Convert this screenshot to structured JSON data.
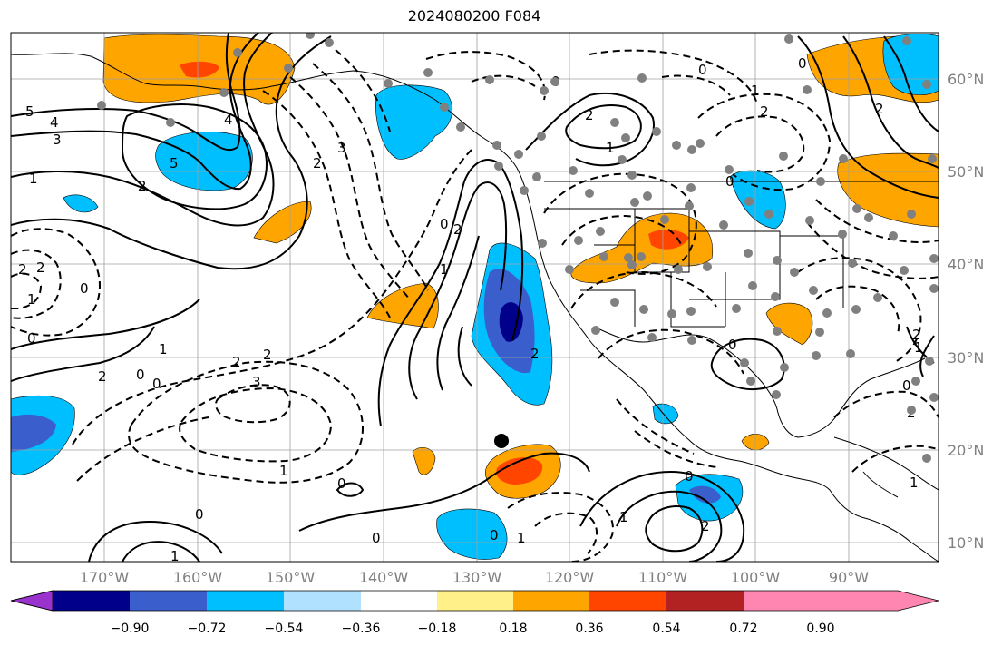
{
  "title": "2024080200 F084",
  "latitude_labels": [
    "60°N",
    "50°N",
    "40°N",
    "30°N",
    "20°N",
    "10°N"
  ],
  "longitude_labels": [
    "170°W",
    "160°W",
    "150°W",
    "140°W",
    "130°W",
    "120°W",
    "110°W",
    "100°W",
    "90°W"
  ],
  "colorbar": {
    "ticks": [
      "−0.90",
      "−0.72",
      "−0.54",
      "−0.36",
      "−0.18",
      "0.18",
      "0.36",
      "0.54",
      "0.72",
      "0.90"
    ],
    "colors": [
      "#9a32cd",
      "#00008b",
      "#3a5fcd",
      "#00bfff",
      "#b0e2ff",
      "#ffffff",
      "#fff08a",
      "#ffa500",
      "#ff4500",
      "#b22222",
      "#ff86b0"
    ]
  },
  "contour_labels": [
    "0",
    "1",
    "2",
    "3",
    "4",
    "5"
  ],
  "shading_colors": {
    "neg_strong": "#00008b",
    "neg_mid": "#3a5fcd",
    "neg": "#00bfff",
    "pos": "#ffa500",
    "pos_mid": "#ff4500"
  },
  "marker": "storm-center"
}
